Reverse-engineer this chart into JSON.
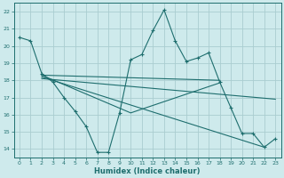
{
  "bg_color": "#ceeaec",
  "grid_color": "#aacdd0",
  "line_color": "#1e6e6e",
  "xlabel": "Humidex (Indice chaleur)",
  "xlim": [
    -0.5,
    23.5
  ],
  "ylim": [
    13.5,
    22.5
  ],
  "xticks": [
    0,
    1,
    2,
    3,
    4,
    5,
    6,
    7,
    8,
    9,
    10,
    11,
    12,
    13,
    14,
    15,
    16,
    17,
    18,
    19,
    20,
    21,
    22,
    23
  ],
  "yticks": [
    14,
    15,
    16,
    17,
    18,
    19,
    20,
    21,
    22
  ],
  "series": [
    {
      "x": [
        0,
        1,
        2,
        3,
        4,
        5,
        6,
        7,
        8,
        9,
        10,
        11,
        12,
        13,
        14,
        15,
        16,
        17,
        18,
        19,
        20,
        21,
        22,
        23
      ],
      "y": [
        20.5,
        20.3,
        18.4,
        17.9,
        17.0,
        16.2,
        15.3,
        13.8,
        13.8,
        16.1,
        19.2,
        19.5,
        20.9,
        22.1,
        20.3,
        19.1,
        19.3,
        19.6,
        17.9,
        16.4,
        14.9,
        14.9,
        14.1,
        14.6
      ]
    },
    {
      "x": [
        2,
        18
      ],
      "y": [
        18.3,
        18.0
      ]
    },
    {
      "x": [
        2,
        10,
        18
      ],
      "y": [
        18.3,
        16.1,
        17.85
      ]
    },
    {
      "x": [
        2,
        22
      ],
      "y": [
        18.2,
        14.1
      ]
    },
    {
      "x": [
        2,
        23
      ],
      "y": [
        18.1,
        16.9
      ]
    }
  ]
}
